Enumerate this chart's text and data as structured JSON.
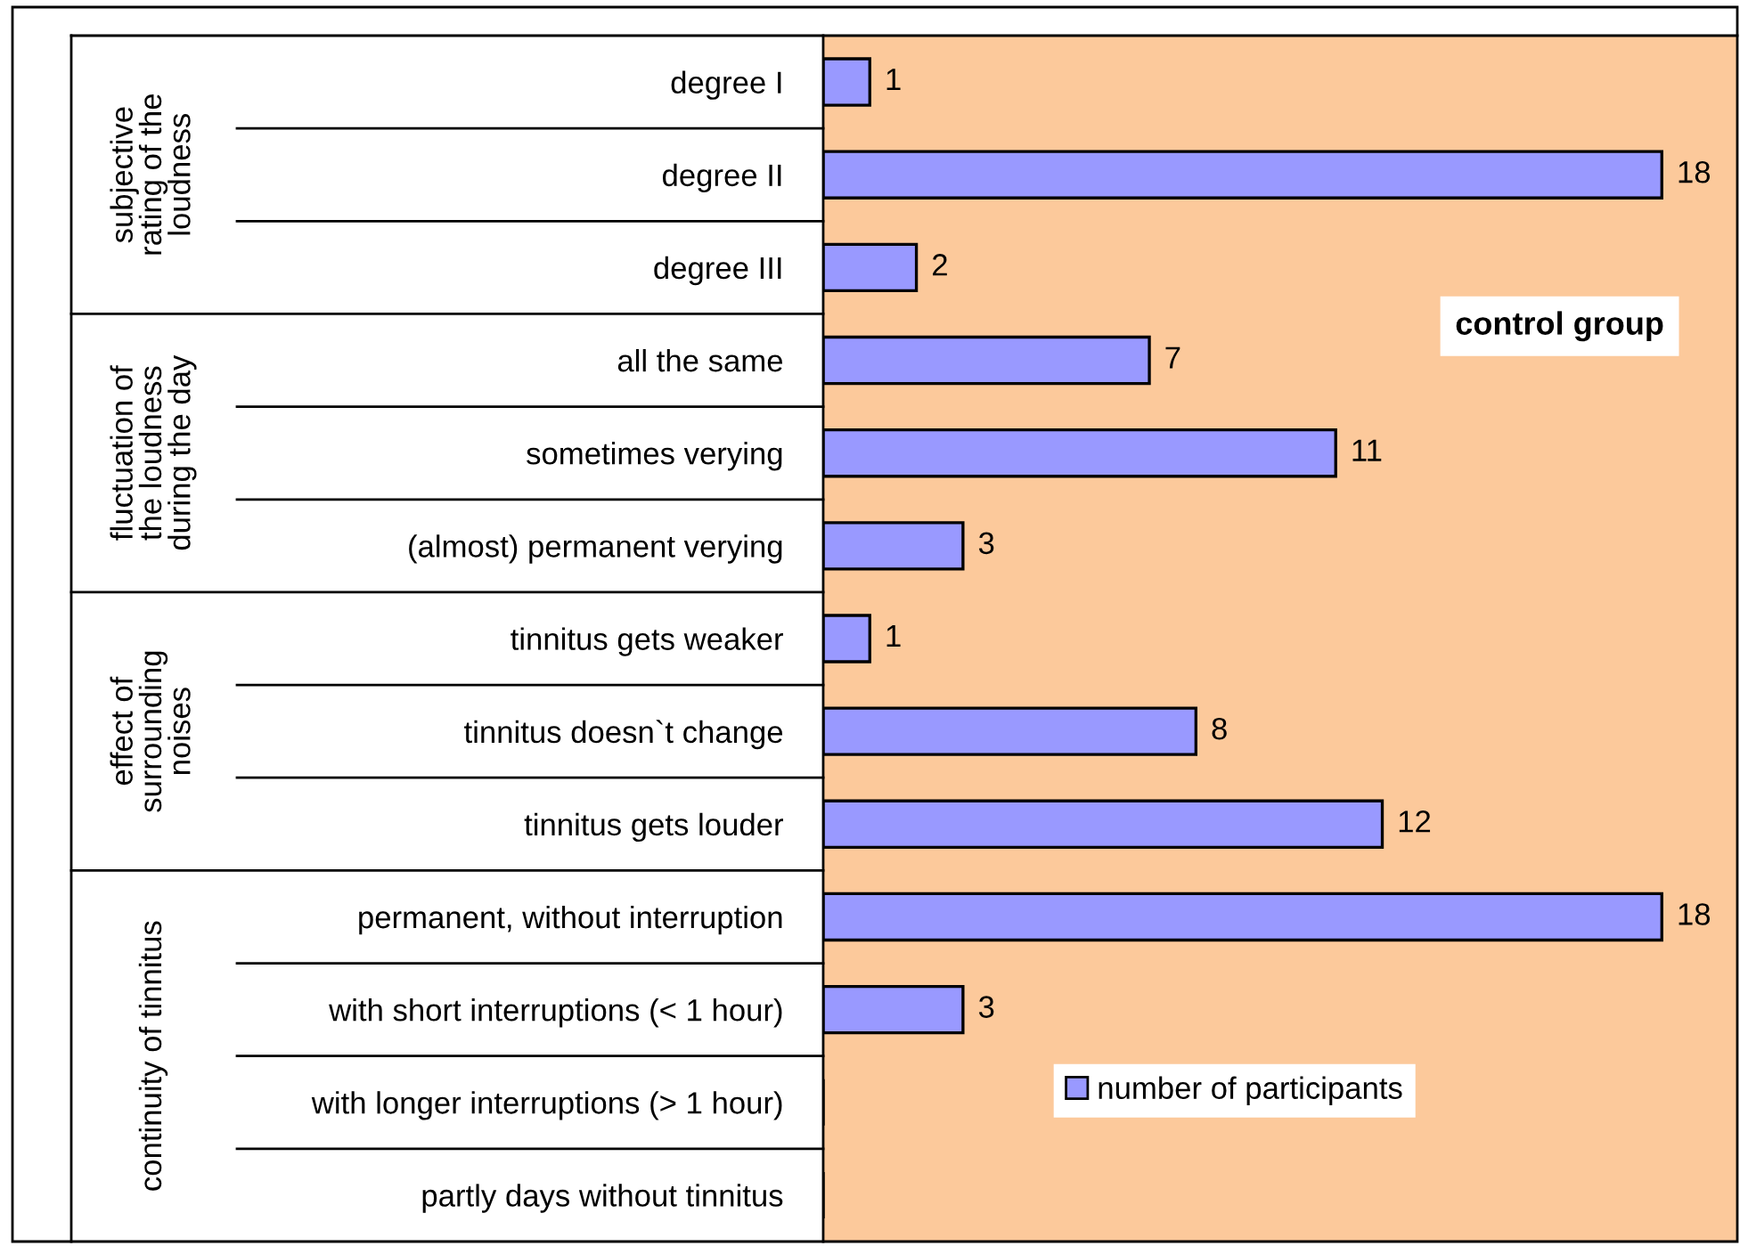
{
  "chart_data": {
    "type": "bar",
    "orientation": "horizontal",
    "categories": [
      "degree I",
      "degree II",
      "degree III",
      "all the same",
      "sometimes verying",
      "(almost) permanent verying",
      "tinnitus gets weaker",
      "tinnitus doesn`t change",
      "tinnitus gets louder",
      "permanent, without interruption",
      "with short interruptions (< 1 hour)",
      "with longer interruptions (> 1 hour)",
      "partly days without tinnitus"
    ],
    "series": [
      {
        "name": "number of participants",
        "color": "#9999ff",
        "values": [
          1,
          18,
          2,
          7,
          11,
          3,
          1,
          8,
          12,
          18,
          3,
          null,
          null
        ]
      }
    ],
    "data_labels": true,
    "annotations": [
      "subjective\nrating of the\nloudness",
      "fluctuation of\nthe loudness\nduring the day",
      "effect of\nsurrounding\nnoises",
      "continuity of tinnitus",
      "control group"
    ],
    "legend": "bottom",
    "grid": false,
    "tick_labels": "y"
  }
}
